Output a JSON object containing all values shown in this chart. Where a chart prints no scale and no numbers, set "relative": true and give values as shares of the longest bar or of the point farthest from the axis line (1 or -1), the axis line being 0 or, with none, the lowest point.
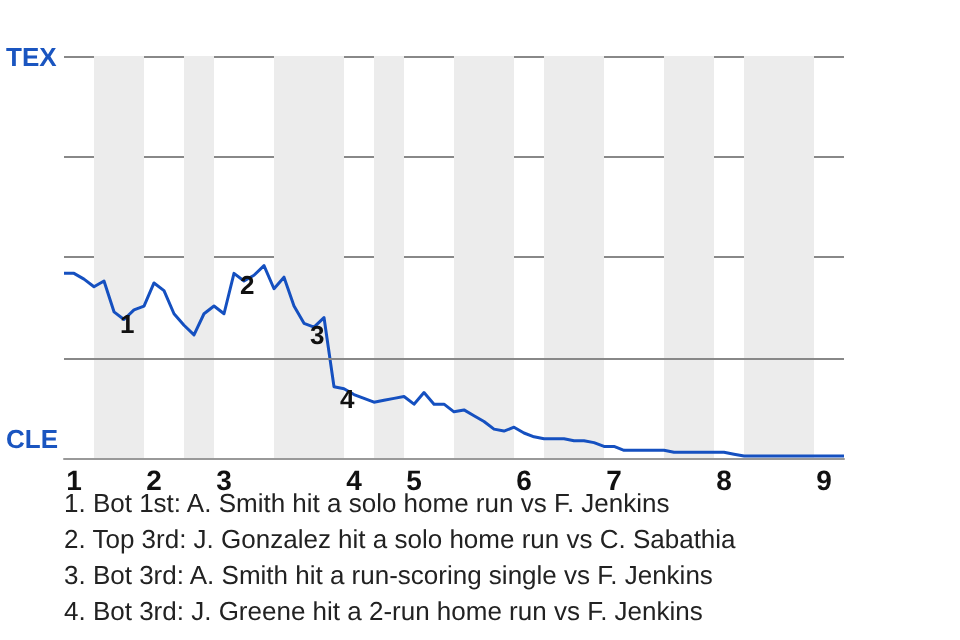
{
  "chart_data": {
    "type": "line",
    "relative": true,
    "categories": [
      null,
      "1",
      null,
      null,
      null,
      null,
      null,
      null,
      null,
      "2",
      null,
      null,
      null,
      null,
      null,
      null,
      "3",
      null,
      null,
      null,
      null,
      null,
      null,
      null,
      null,
      null,
      null,
      null,
      null,
      "4",
      null,
      null,
      null,
      null,
      null,
      "5",
      null,
      null,
      null,
      null,
      null,
      null,
      null,
      null,
      null,
      null,
      "6",
      null,
      null,
      null,
      null,
      null,
      null,
      null,
      null,
      "7",
      null,
      null,
      null,
      null,
      null,
      null,
      null,
      null,
      null,
      null,
      "8",
      null,
      null,
      null,
      null,
      null,
      null,
      null,
      null,
      null,
      "9",
      null,
      null
    ],
    "series": [
      {
        "color": "#1550c0",
        "values": [
          0.96,
          0.96,
          0.93,
          0.89,
          0.92,
          0.76,
          0.72,
          0.77,
          0.79,
          0.91,
          0.87,
          0.75,
          0.69,
          0.64,
          0.75,
          0.79,
          0.75,
          0.96,
          0.92,
          0.95,
          1,
          0.88,
          0.94,
          0.79,
          0.7,
          0.68,
          0.73,
          0.37,
          0.36,
          0.33,
          0.31,
          0.29,
          0.3,
          0.31,
          0.32,
          0.28,
          0.34,
          0.28,
          0.28,
          0.24,
          0.25,
          0.22,
          0.19,
          0.15,
          0.14,
          0.16,
          0.13,
          0.11,
          0.1,
          0.1,
          0.1,
          0.09,
          0.09,
          0.08,
          0.06,
          0.06,
          0.04,
          0.04,
          0.04,
          0.04,
          0.04,
          0.03,
          0.03,
          0.03,
          0.03,
          0.03,
          0.03,
          0.02,
          0.01,
          0.01,
          0.01,
          0.01,
          0.01,
          0.01,
          0.01,
          0.01,
          0.01,
          0.01,
          0.01
        ]
      }
    ],
    "marker": "none",
    "ref_lines": [
      {
        "axis": "y",
        "value": 0.52,
        "color": "#888888"
      }
    ],
    "annotations": [
      "TEX",
      "CLE",
      {
        "text": "1",
        "y": 0.76
      },
      {
        "text": "2",
        "y": 0.96
      },
      {
        "text": "3",
        "y": 0.7
      },
      {
        "text": "4",
        "y": 0.37
      },
      "1. Bot 1st: A. Smith hit a solo home run vs F. Jenkins",
      "2. Top 3rd: J. Gonzalez hit a solo home run vs C. Sabathia",
      "3. Bot 3rd: A. Smith hit a run-scoring single vs F. Jenkins",
      "4. Bot 3rd: J. Greene hit a 2-run home run vs F. Jenkins"
    ]
  }
}
